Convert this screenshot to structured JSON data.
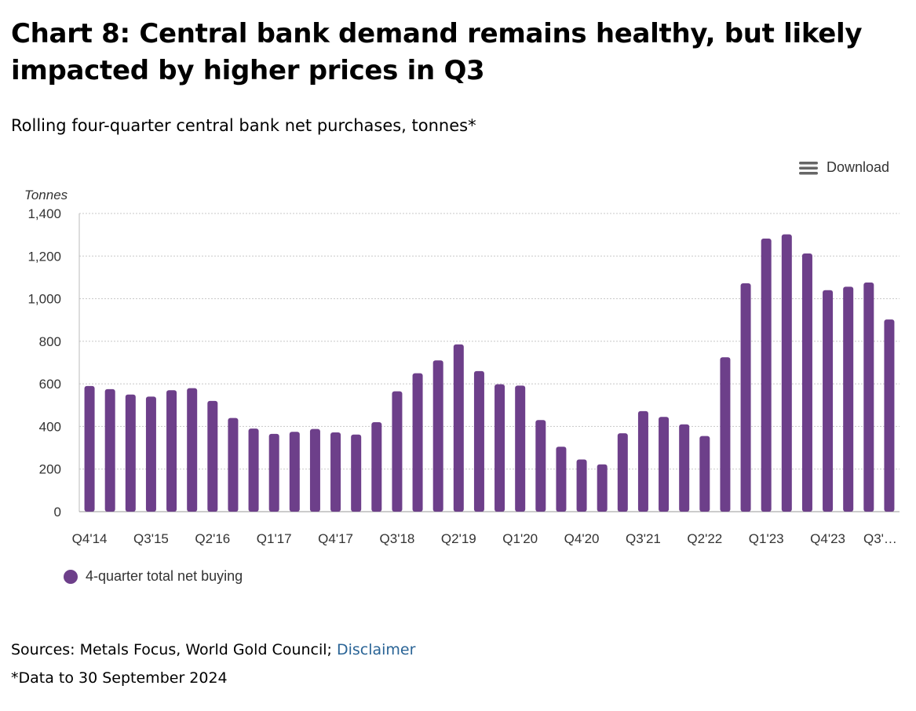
{
  "header": {
    "title": "Chart 8: Central bank demand remains healthy, but likely impacted by higher prices in Q3",
    "subtitle": "Rolling four-quarter central bank net purchases, tonnes*"
  },
  "toolbar": {
    "download_label": "Download",
    "download_icon": "menu-icon"
  },
  "footer": {
    "sources_prefix": "Sources: Metals Focus, World Gold Council; ",
    "disclaimer_link": "Disclaimer",
    "footnote": "*Data to 30 September 2024"
  },
  "chart_data": {
    "type": "bar",
    "ylabel": "Tonnes",
    "ylim": [
      0,
      1400
    ],
    "yticks": [
      0,
      200,
      400,
      600,
      800,
      1000,
      1200,
      1400
    ],
    "ytick_labels": [
      "0",
      "200",
      "400",
      "600",
      "800",
      "1,000",
      "1,200",
      "1,400"
    ],
    "grid": true,
    "legend_position": "bottom-left",
    "bar_color": "#6d3f8a",
    "categories": [
      "Q4'14",
      "Q1'15",
      "Q2'15",
      "Q3'15",
      "Q4'15",
      "Q1'16",
      "Q2'16",
      "Q3'16",
      "Q4'16",
      "Q1'17",
      "Q2'17",
      "Q3'17",
      "Q4'17",
      "Q1'18",
      "Q2'18",
      "Q3'18",
      "Q4'18",
      "Q1'19",
      "Q2'19",
      "Q3'19",
      "Q4'19",
      "Q1'20",
      "Q2'20",
      "Q3'20",
      "Q4'20",
      "Q1'21",
      "Q2'21",
      "Q3'21",
      "Q4'21",
      "Q1'22",
      "Q2'22",
      "Q3'22",
      "Q4'22",
      "Q1'23",
      "Q2'23",
      "Q3'23",
      "Q4'23",
      "Q1'24",
      "Q2'24",
      "Q3'24"
    ],
    "xtick_labels": [
      {
        "index": 0,
        "text": "Q4'14"
      },
      {
        "index": 3,
        "text": "Q3'15"
      },
      {
        "index": 6,
        "text": "Q2'16"
      },
      {
        "index": 9,
        "text": "Q1'17"
      },
      {
        "index": 12,
        "text": "Q4'17"
      },
      {
        "index": 15,
        "text": "Q3'18"
      },
      {
        "index": 18,
        "text": "Q2'19"
      },
      {
        "index": 21,
        "text": "Q1'20"
      },
      {
        "index": 24,
        "text": "Q4'20"
      },
      {
        "index": 27,
        "text": "Q3'21"
      },
      {
        "index": 30,
        "text": "Q2'22"
      },
      {
        "index": 33,
        "text": "Q1'23"
      },
      {
        "index": 36,
        "text": "Q4'23"
      },
      {
        "index": 39,
        "text": "Q3'…"
      }
    ],
    "series": [
      {
        "name": "4-quarter total net buying",
        "values": [
          590,
          575,
          550,
          540,
          570,
          580,
          520,
          440,
          390,
          365,
          375,
          388,
          372,
          362,
          420,
          565,
          650,
          710,
          785,
          660,
          598,
          592,
          430,
          305,
          245,
          222,
          368,
          472,
          445,
          410,
          355,
          725,
          1072,
          1282,
          1302,
          1212,
          1040,
          1056,
          1076,
          902
        ]
      }
    ]
  }
}
